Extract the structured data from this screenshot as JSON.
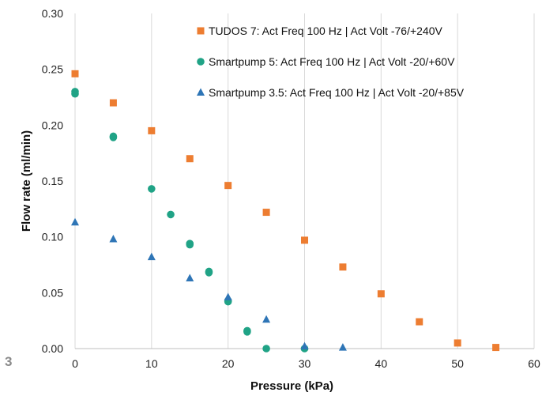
{
  "page_marker": "3",
  "chart_data": {
    "type": "scatter",
    "xlabel": "Pressure (kPa)",
    "ylabel": "Flow rate (ml/min)",
    "xlim": [
      0,
      60
    ],
    "ylim": [
      0,
      0.3
    ],
    "x_ticks": [
      "0",
      "10",
      "20",
      "30",
      "40",
      "50",
      "60"
    ],
    "y_ticks": [
      "0.00",
      "0.05",
      "0.10",
      "0.15",
      "0.20",
      "0.25",
      "0.30"
    ],
    "grid": "vertical",
    "legend_position": "top-right",
    "series": [
      {
        "name": "TUDOS 7: Act Freq 100 Hz | Act Volt -76/+240V",
        "marker": "square",
        "color": "#ed7d31",
        "points": [
          [
            0,
            0.246
          ],
          [
            5,
            0.22
          ],
          [
            10,
            0.195
          ],
          [
            15,
            0.17
          ],
          [
            20,
            0.146
          ],
          [
            25,
            0.122
          ],
          [
            30,
            0.097
          ],
          [
            35,
            0.073
          ],
          [
            40,
            0.049
          ],
          [
            45,
            0.024
          ],
          [
            50,
            0.005
          ],
          [
            55,
            0.001
          ]
        ]
      },
      {
        "name": "Smartpump 5: Act Freq 100 Hz | Act Volt -20/+60V",
        "marker": "circle",
        "color": "#20a386",
        "points": [
          [
            0,
            0.23
          ],
          [
            0,
            0.228
          ],
          [
            5,
            0.19
          ],
          [
            5,
            0.189
          ],
          [
            10,
            0.143
          ],
          [
            12.5,
            0.12
          ],
          [
            15,
            0.094
          ],
          [
            15,
            0.093
          ],
          [
            17.5,
            0.069
          ],
          [
            17.5,
            0.068
          ],
          [
            20,
            0.043
          ],
          [
            20,
            0.042
          ],
          [
            22.5,
            0.016
          ],
          [
            22.5,
            0.015
          ],
          [
            25,
            0.0
          ],
          [
            30,
            0.0
          ]
        ]
      },
      {
        "name": "Smartpump 3.5: Act Freq 100 Hz | Act Volt -20/+85V",
        "marker": "triangle",
        "color": "#2e75b6",
        "points": [
          [
            0,
            0.113
          ],
          [
            5,
            0.098
          ],
          [
            10,
            0.082
          ],
          [
            15,
            0.063
          ],
          [
            20,
            0.046
          ],
          [
            25,
            0.026
          ],
          [
            30,
            0.002
          ],
          [
            35,
            0.001
          ]
        ]
      }
    ]
  }
}
